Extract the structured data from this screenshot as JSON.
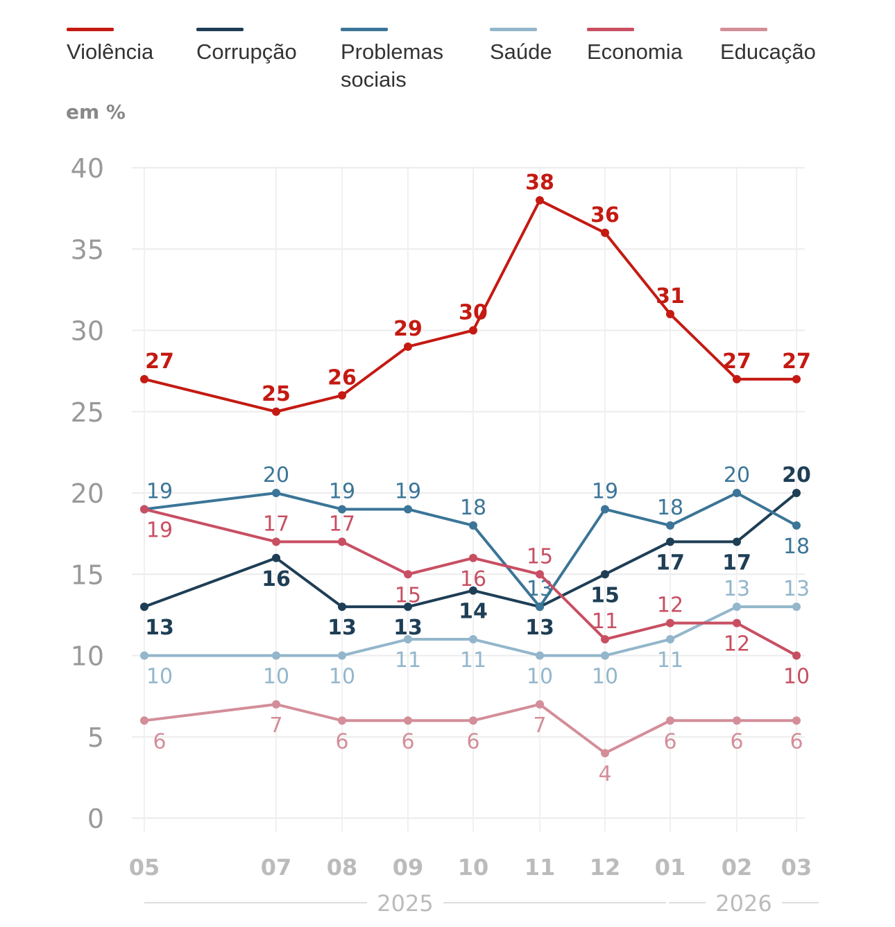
{
  "legend": {
    "items": [
      {
        "label": "Violência",
        "color": "#c41a12"
      },
      {
        "label": "Corrupção",
        "color": "#1e3e55"
      },
      {
        "label": "Problemas sociais",
        "color": "#3b7597"
      },
      {
        "label": "Saúde",
        "color": "#93b6cb"
      },
      {
        "label": "Economia",
        "color": "#c84f62"
      },
      {
        "label": "Educação",
        "color": "#d38e99"
      }
    ]
  },
  "unit_label": "em %",
  "chart_data": {
    "type": "line",
    "title": "",
    "xlabel": "",
    "ylabel": "em %",
    "ylim": [
      0,
      40
    ],
    "yticks": [
      0,
      5,
      10,
      15,
      20,
      25,
      30,
      35,
      40
    ],
    "x": [
      "05",
      "07",
      "08",
      "09",
      "10",
      "11",
      "12",
      "01",
      "02",
      "03"
    ],
    "x_years": [
      {
        "label": "2025",
        "from": "05",
        "to": "12"
      },
      {
        "label": "2026",
        "from": "01",
        "to": "03"
      }
    ],
    "grid": true,
    "legend_placement": "top",
    "series": [
      {
        "name": "Violência",
        "color": "#c41a12",
        "values": [
          27,
          25,
          26,
          29,
          30,
          38,
          36,
          31,
          27,
          27
        ]
      },
      {
        "name": "Corrupção",
        "color": "#1e3e55",
        "values": [
          13,
          16,
          13,
          13,
          14,
          13,
          15,
          17,
          17,
          20
        ]
      },
      {
        "name": "Problemas sociais",
        "color": "#3b7597",
        "values": [
          19,
          20,
          19,
          19,
          18,
          13,
          19,
          18,
          20,
          18
        ]
      },
      {
        "name": "Saúde",
        "color": "#93b6cb",
        "values": [
          10,
          10,
          10,
          11,
          11,
          10,
          10,
          11,
          13,
          13
        ]
      },
      {
        "name": "Economia",
        "color": "#c84f62",
        "values": [
          19,
          17,
          17,
          15,
          16,
          15,
          11,
          12,
          12,
          10
        ]
      },
      {
        "name": "Educação",
        "color": "#d38e99",
        "values": [
          6,
          7,
          6,
          6,
          6,
          7,
          4,
          6,
          6,
          6
        ]
      }
    ]
  }
}
